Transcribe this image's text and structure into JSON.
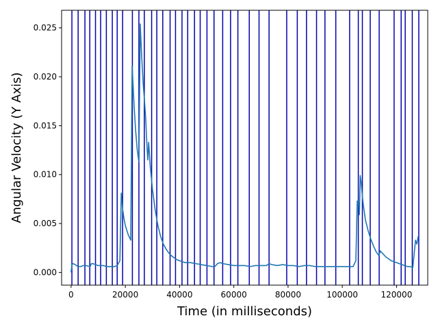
{
  "chart_data": {
    "type": "line",
    "title": "",
    "xlabel": "Time (in milliseconds)",
    "ylabel": "Angular Velocity (Y Axis)",
    "xlim": [
      -3500,
      131500
    ],
    "ylim": [
      -0.0013,
      0.0268
    ],
    "x_ticks": [
      0,
      20000,
      40000,
      60000,
      80000,
      100000,
      120000
    ],
    "x_tick_labels": [
      "0",
      "20000",
      "40000",
      "60000",
      "80000",
      "100000",
      "120000"
    ],
    "y_ticks": [
      0.0,
      0.005,
      0.01,
      0.015,
      0.02,
      0.025
    ],
    "y_tick_labels": [
      "0.000",
      "0.005",
      "0.010",
      "0.015",
      "0.020",
      "0.025"
    ],
    "grid": false,
    "legend": "none",
    "colors": {
      "series": "#1f77b4",
      "vlines": "#0000aa"
    },
    "vertical_lines_x": [
      300,
      2600,
      5100,
      6900,
      9000,
      10900,
      13000,
      15200,
      17000,
      19000,
      22600,
      25000,
      27000,
      29700,
      31600,
      33800,
      36500,
      38500,
      40900,
      43000,
      45500,
      47600,
      50100,
      52700,
      55900,
      58800,
      61500,
      65700,
      69300,
      73000,
      79500,
      83400,
      86800,
      90500,
      93600,
      97600,
      102700,
      105900,
      107400,
      110300,
      113600,
      119100,
      121700,
      123200,
      125800,
      128200
    ],
    "series": [
      {
        "x": [
          0,
          300,
          800,
          1500,
          2500,
          3500,
          4500,
          5500,
          7000,
          7500,
          8000,
          9000,
          10000,
          11000,
          12000,
          13000,
          14000,
          15000,
          16000,
          17000,
          18000,
          18500,
          19000,
          19500,
          20000,
          21000,
          22000,
          22500,
          22800,
          23200,
          23800,
          24400,
          25000,
          25500,
          25800,
          26200,
          26600,
          27000,
          27500,
          28000,
          28300,
          28600,
          29200,
          30000,
          31000,
          32000,
          33000,
          34000,
          35000,
          36000,
          37000,
          38000,
          39000,
          40000,
          42000,
          44000,
          46000,
          48000,
          50000,
          52000,
          53000,
          54000,
          55000,
          56000,
          58000,
          60000,
          62000,
          64000,
          66000,
          68000,
          70000,
          72000,
          73000,
          74000,
          76000,
          78000,
          80000,
          82000,
          84000,
          86000,
          88000,
          90000,
          92000,
          94000,
          96000,
          98000,
          100000,
          102000,
          104000,
          105000,
          105500,
          106000,
          106300,
          106600,
          107000,
          107400,
          107800,
          108500,
          109500,
          110500,
          111500,
          112500,
          113500,
          114000,
          115000,
          116000,
          117000,
          118000,
          119000,
          120000,
          121000,
          122000,
          123000,
          124000,
          125000,
          126000,
          126500,
          127000,
          127500,
          128000
        ],
        "y": [
          0.0,
          0.0008,
          0.0009,
          0.0008,
          0.0006,
          0.0006,
          0.0007,
          0.0007,
          0.0006,
          0.0009,
          0.0009,
          0.0008,
          0.0007,
          0.0007,
          0.0007,
          0.0006,
          0.0006,
          0.0006,
          0.0006,
          0.0007,
          0.0012,
          0.0081,
          0.0065,
          0.0055,
          0.0048,
          0.0039,
          0.0033,
          0.0211,
          0.0195,
          0.0172,
          0.0145,
          0.0125,
          0.0113,
          0.0254,
          0.0235,
          0.0212,
          0.0192,
          0.0178,
          0.0158,
          0.0128,
          0.0115,
          0.0133,
          0.0108,
          0.0085,
          0.0064,
          0.0048,
          0.0037,
          0.0029,
          0.0024,
          0.002,
          0.0017,
          0.0015,
          0.0013,
          0.0012,
          0.001,
          0.001,
          0.0009,
          0.0008,
          0.0007,
          0.0006,
          0.0006,
          0.0009,
          0.001,
          0.0009,
          0.0008,
          0.0007,
          0.0007,
          0.0007,
          0.0006,
          0.0007,
          0.0007,
          0.0007,
          0.0009,
          0.0008,
          0.0007,
          0.0008,
          0.0007,
          0.0007,
          0.0006,
          0.0007,
          0.0007,
          0.0006,
          0.0006,
          0.0006,
          0.0006,
          0.0006,
          0.0006,
          0.0006,
          0.0006,
          0.0012,
          0.0073,
          0.0072,
          0.0059,
          0.0099,
          0.0091,
          0.0078,
          0.0068,
          0.0054,
          0.0043,
          0.0034,
          0.0027,
          0.0021,
          0.0017,
          0.0022,
          0.0019,
          0.0016,
          0.0014,
          0.0012,
          0.0011,
          0.001,
          0.0009,
          0.0008,
          0.0007,
          0.0006,
          0.0006,
          0.0005,
          0.0019,
          0.0033,
          0.0029,
          0.0037
        ]
      }
    ]
  }
}
